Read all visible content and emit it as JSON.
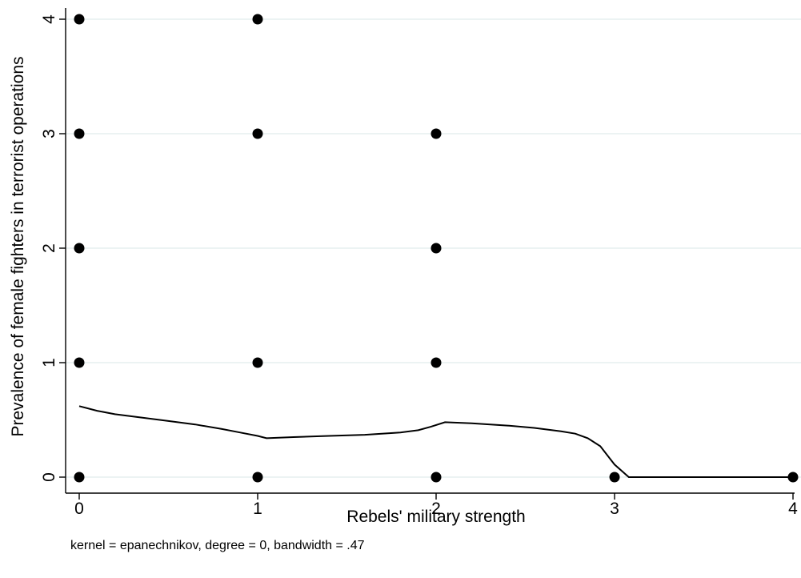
{
  "chart_data": {
    "type": "scatter",
    "title": "",
    "xlabel": "Rebels' military strength",
    "ylabel": "Prevalence of female fighters in terrorist operations",
    "note": "kernel = epanechnikov, degree = 0, bandwidth = .47",
    "xlim": [
      0,
      4
    ],
    "ylim": [
      0,
      4
    ],
    "x_ticks": [
      "0",
      "1",
      "2",
      "3",
      "4"
    ],
    "y_ticks": [
      "0",
      "1",
      "2",
      "3",
      "4"
    ],
    "grid": "horizontal",
    "colors": {
      "points": "#000000",
      "line": "#000000",
      "grid": "#e6efef",
      "axis": "#000000"
    },
    "series": [
      {
        "type": "scatter",
        "points": [
          [
            0,
            4
          ],
          [
            1,
            4
          ],
          [
            0,
            3
          ],
          [
            1,
            3
          ],
          [
            2,
            3
          ],
          [
            0,
            2
          ],
          [
            2,
            2
          ],
          [
            0,
            1
          ],
          [
            1,
            1
          ],
          [
            2,
            1
          ],
          [
            0,
            0
          ],
          [
            1,
            0
          ],
          [
            2,
            0
          ],
          [
            3,
            0
          ],
          [
            4,
            0
          ]
        ]
      },
      {
        "type": "line",
        "points": [
          [
            0.0,
            0.62
          ],
          [
            0.1,
            0.58
          ],
          [
            0.2,
            0.55
          ],
          [
            0.35,
            0.52
          ],
          [
            0.5,
            0.49
          ],
          [
            0.65,
            0.46
          ],
          [
            0.8,
            0.42
          ],
          [
            0.9,
            0.39
          ],
          [
            1.0,
            0.36
          ],
          [
            1.05,
            0.34
          ],
          [
            1.2,
            0.35
          ],
          [
            1.4,
            0.36
          ],
          [
            1.6,
            0.37
          ],
          [
            1.8,
            0.39
          ],
          [
            1.9,
            0.41
          ],
          [
            1.97,
            0.44
          ],
          [
            2.05,
            0.48
          ],
          [
            2.2,
            0.47
          ],
          [
            2.4,
            0.45
          ],
          [
            2.55,
            0.43
          ],
          [
            2.7,
            0.4
          ],
          [
            2.78,
            0.38
          ],
          [
            2.85,
            0.34
          ],
          [
            2.92,
            0.27
          ],
          [
            3.0,
            0.11
          ],
          [
            3.08,
            0.0
          ],
          [
            3.5,
            0.0
          ],
          [
            4.0,
            0.0
          ]
        ]
      }
    ]
  }
}
